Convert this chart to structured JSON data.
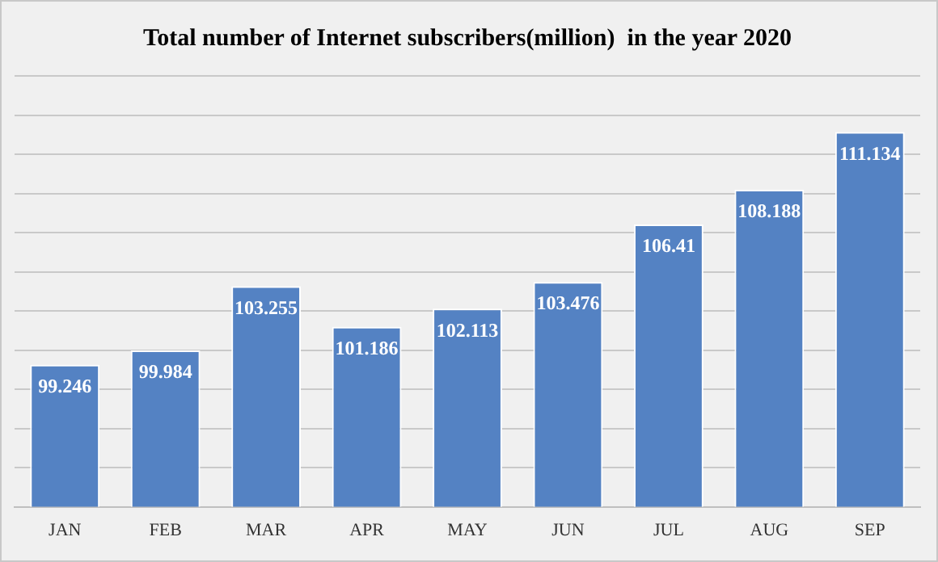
{
  "chart_data": {
    "type": "bar",
    "title": "Total number of Internet subscribers(million)  in the year 2020",
    "categories": [
      "JAN",
      "FEB",
      "MAR",
      "APR",
      "MAY",
      "JUN",
      "JUL",
      "AUG",
      "SEP"
    ],
    "values": [
      99.246,
      99.984,
      103.255,
      101.186,
      102.113,
      103.476,
      106.41,
      108.188,
      111.134
    ],
    "color": "#5482c3",
    "data_labels": true,
    "grid": "y",
    "legend": false,
    "tick_labels": "x",
    "ylim": [
      92,
      114
    ],
    "yticks": [
      {
        "value": 92,
        "label": null
      },
      {
        "value": 94,
        "label": null
      },
      {
        "value": 96,
        "label": null
      },
      {
        "value": 98,
        "label": null
      },
      {
        "value": 100,
        "label": null
      },
      {
        "value": 102,
        "label": null
      },
      {
        "value": 104,
        "label": null
      },
      {
        "value": 106,
        "label": null
      },
      {
        "value": 108,
        "label": null
      },
      {
        "value": 110,
        "label": null
      },
      {
        "value": 112,
        "label": null
      },
      {
        "value": 114,
        "label": null
      }
    ]
  }
}
